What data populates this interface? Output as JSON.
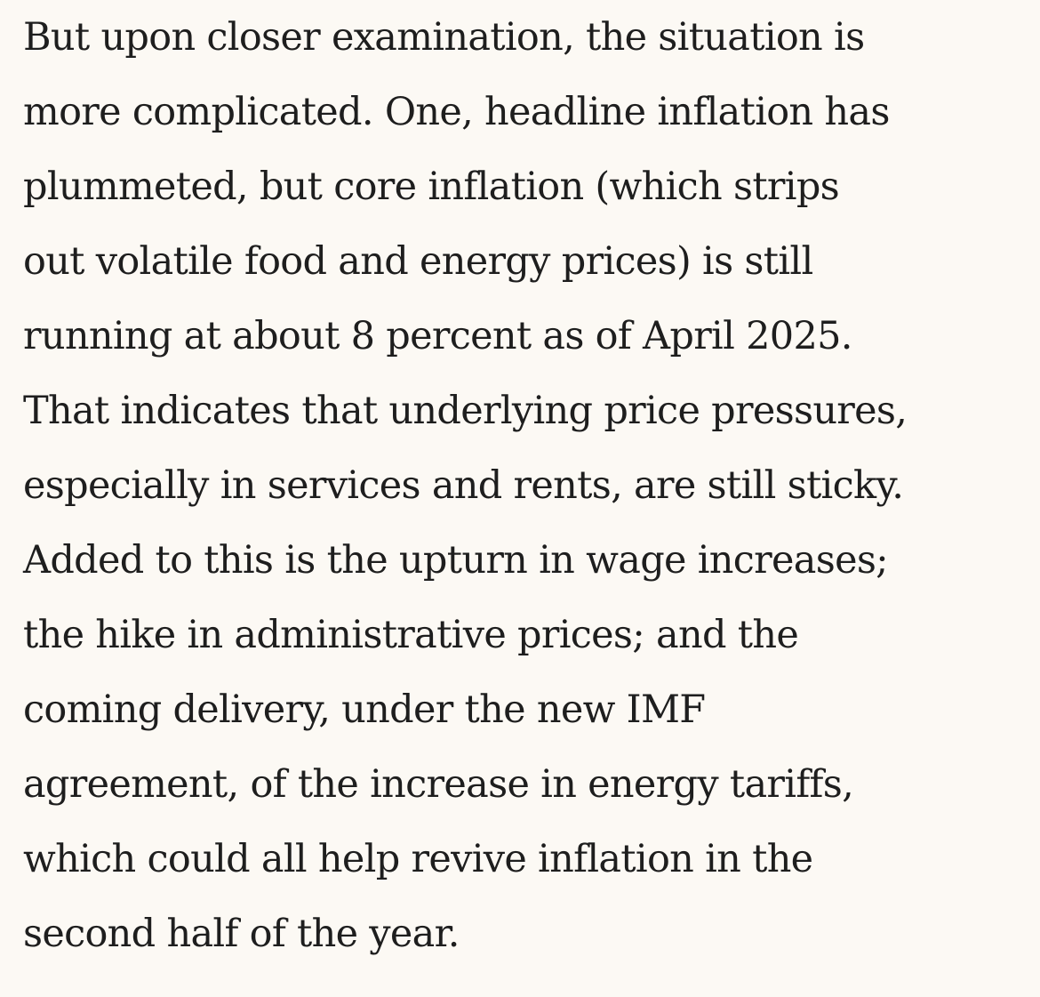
{
  "article": {
    "paragraph": {
      "lines": [
        "But upon closer examination, the situation is",
        "more complicated. One, headline inflation has",
        "plummeted, but core inflation (which strips",
        "out volatile food and energy prices) is still",
        "running at about 8 percent as of April 2025.",
        "That indicates that underlying price pressures,",
        "especially in services and rents, are still sticky.",
        "Added to this is the upturn in wage increases;",
        "the hike in administrative prices; and the",
        "coming delivery, under the new IMF",
        "agreement, of the increase in energy tariffs,",
        "which could all help revive inflation in the",
        "second half of the year."
      ]
    }
  }
}
